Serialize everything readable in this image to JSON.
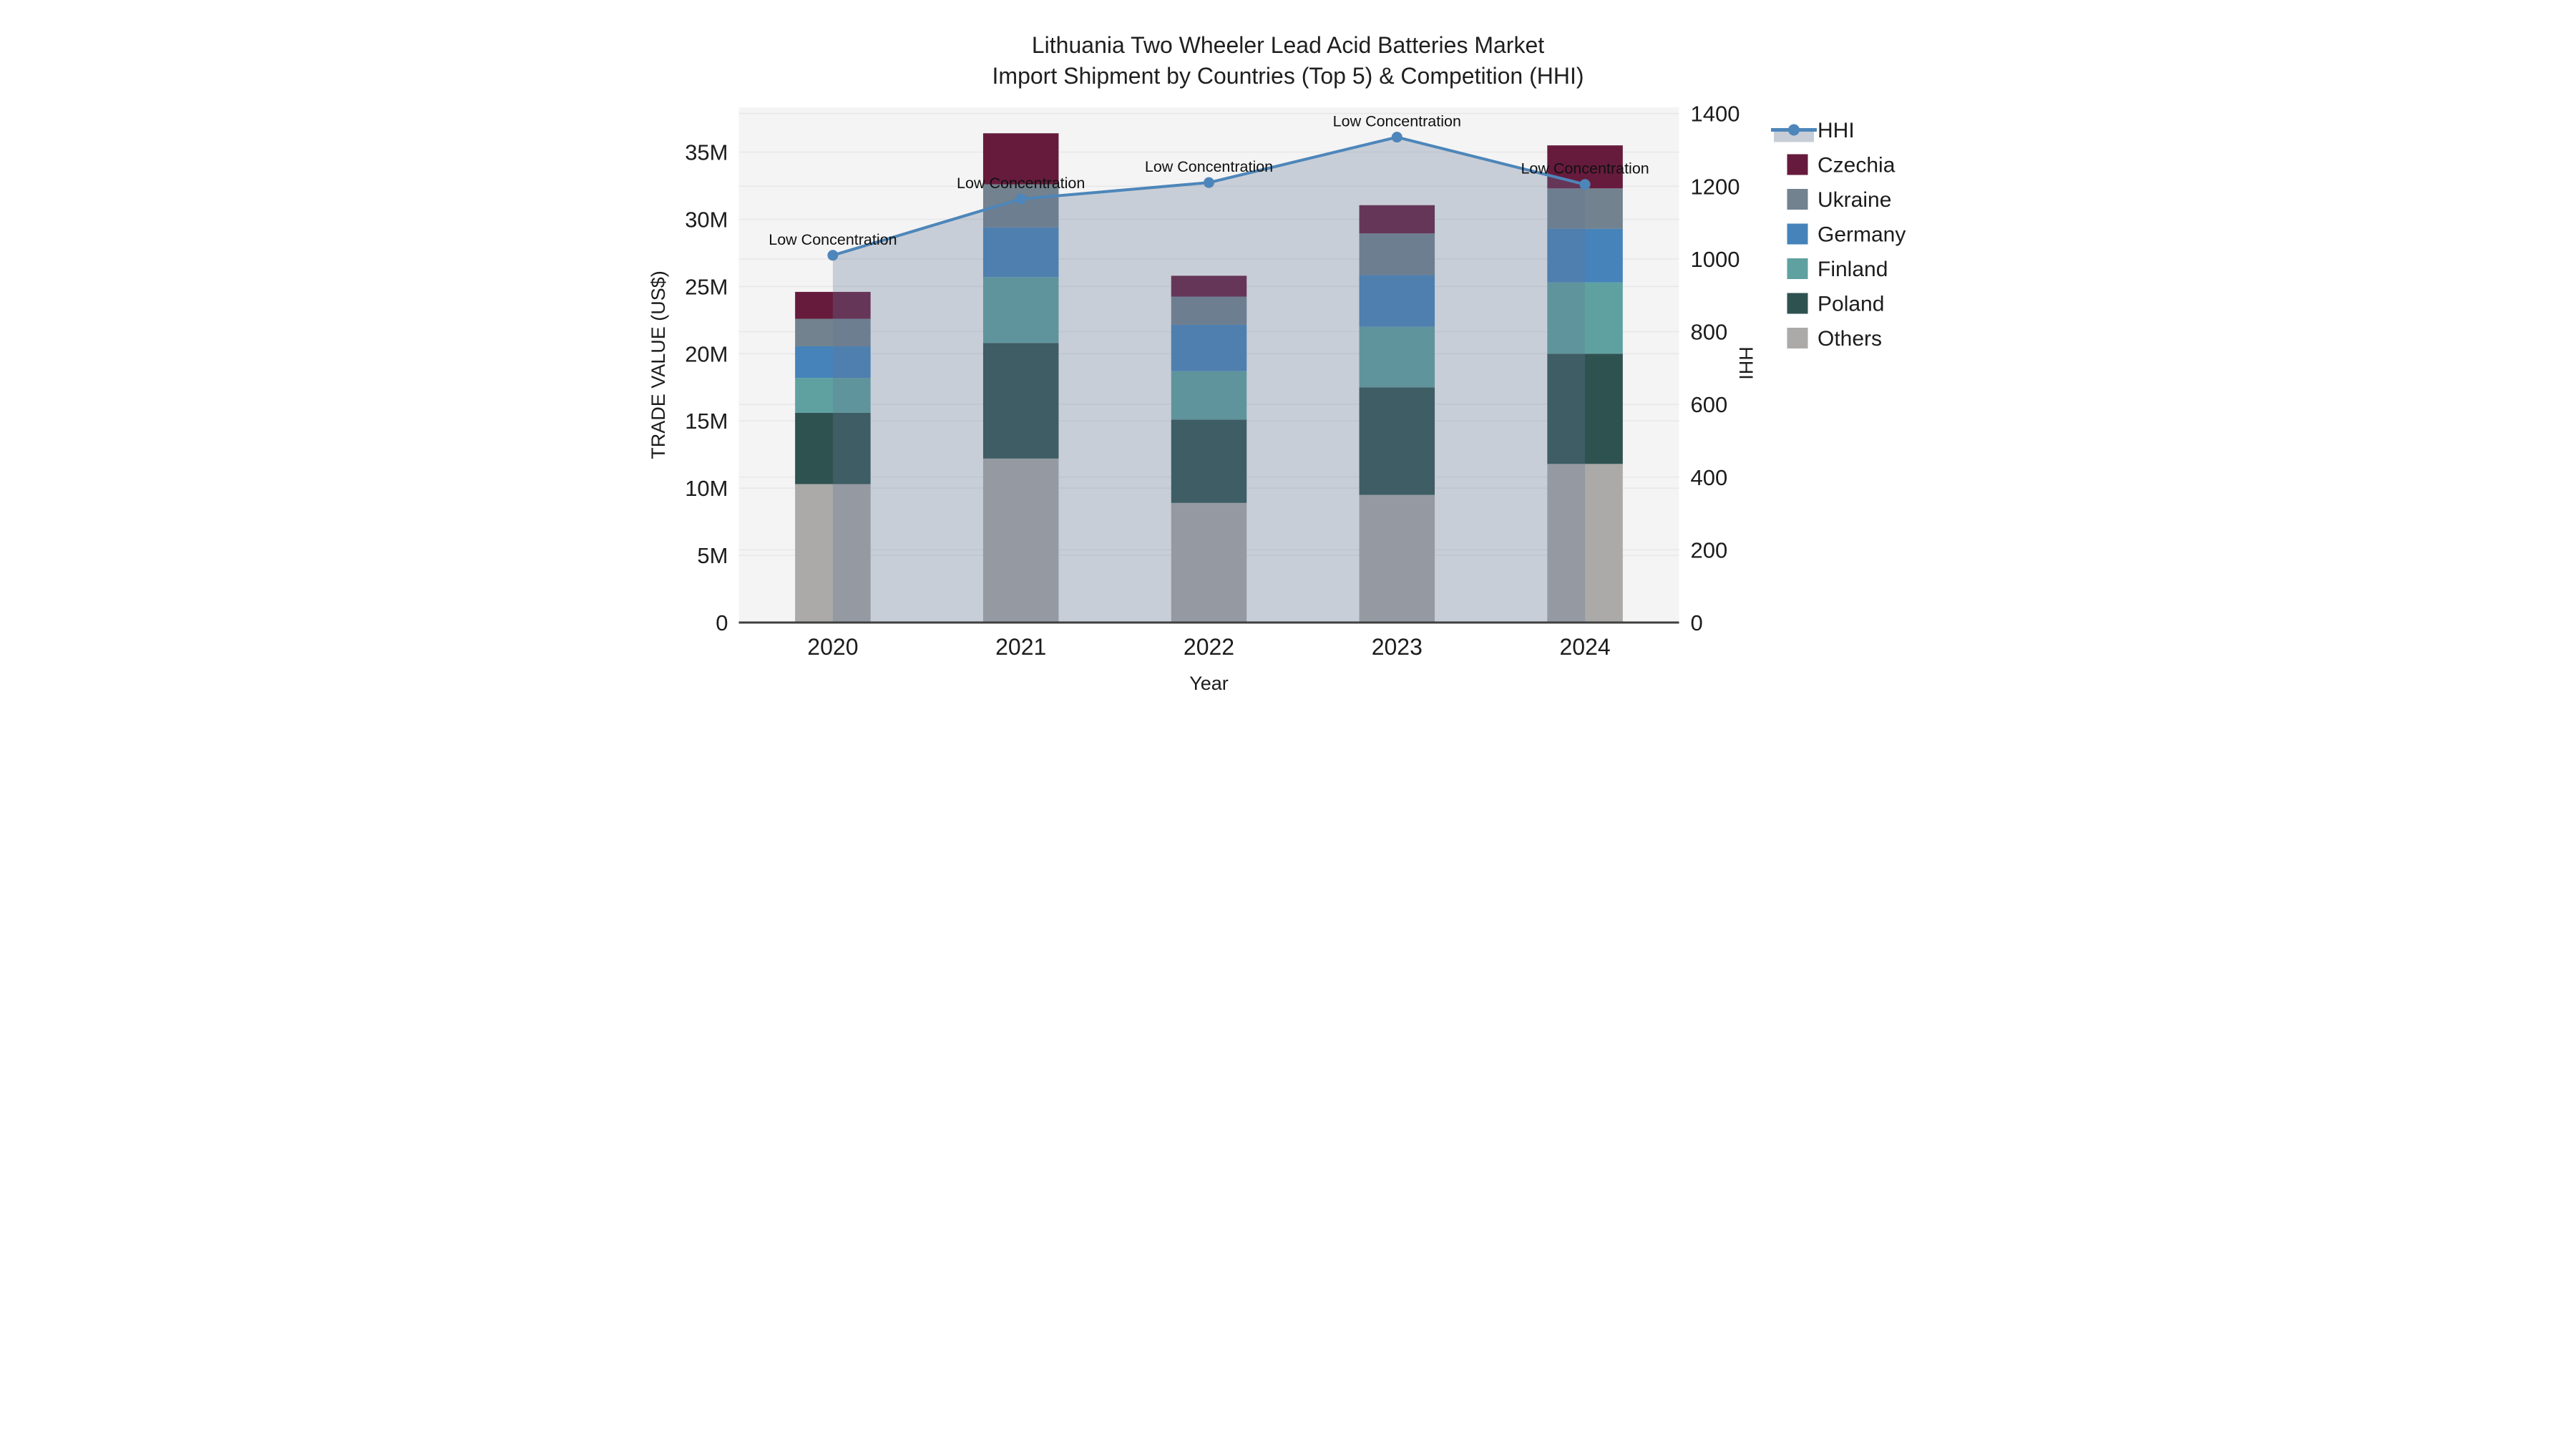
{
  "title": {
    "line1": "Lithuania Two Wheeler Lead Acid Batteries Market",
    "line2": "Import Shipment by Countries (Top 5) & Competition (HHI)"
  },
  "axes": {
    "x_title": "Year",
    "y_left_title": "TRADE VALUE (US$)",
    "y_right_title": "HHI",
    "y_left_tick_labels": [
      "0",
      "5M",
      "10M",
      "15M",
      "20M",
      "25M",
      "30M",
      "35M"
    ],
    "y_left_tick_values": [
      0,
      5,
      10,
      15,
      20,
      25,
      30,
      35
    ],
    "y_right_tick_labels": [
      "0",
      "200",
      "400",
      "600",
      "800",
      "1000",
      "1200",
      "1400"
    ],
    "y_right_tick_values": [
      0,
      200,
      400,
      600,
      800,
      1000,
      1200,
      1400
    ]
  },
  "legend": {
    "items": [
      {
        "label": "HHI",
        "type": "line",
        "color": "#4d86ba",
        "band_color": "#c7cdd6"
      },
      {
        "label": "Czechia",
        "type": "square",
        "color": "#661b3d"
      },
      {
        "label": "Ukraine",
        "type": "square",
        "color": "#72828f"
      },
      {
        "label": "Germany",
        "type": "square",
        "color": "#4583ba"
      },
      {
        "label": "Finland",
        "type": "square",
        "color": "#5fa1a0"
      },
      {
        "label": "Poland",
        "type": "square",
        "color": "#2e5250"
      },
      {
        "label": "Others",
        "type": "square",
        "color": "#abaaa8"
      }
    ]
  },
  "chart_data": {
    "type": "bar",
    "subtype": "stacked-bars-with-line-overlay",
    "title": "Lithuania Two Wheeler Lead Acid Batteries Market Import Shipment by Countries (Top 5) & Competition (HHI)",
    "xlabel": "Year",
    "ylabel_left": "TRADE VALUE (US$)",
    "ylabel_right": "HHI",
    "categories": [
      "2020",
      "2021",
      "2022",
      "2023",
      "2024"
    ],
    "bar_unit": "million US$",
    "stack_order_bottom_to_top": [
      "Others",
      "Poland",
      "Finland",
      "Germany",
      "Ukraine",
      "Czechia"
    ],
    "series": [
      {
        "name": "Others",
        "color": "#abaaa8",
        "values": [
          10.3,
          12.2,
          8.9,
          9.5,
          11.8
        ]
      },
      {
        "name": "Poland",
        "color": "#2e5250",
        "values": [
          5.3,
          8.6,
          6.2,
          8.0,
          8.2
        ]
      },
      {
        "name": "Finland",
        "color": "#5fa1a0",
        "values": [
          2.6,
          4.9,
          3.6,
          4.5,
          5.3
        ]
      },
      {
        "name": "Germany",
        "color": "#4583ba",
        "values": [
          2.35,
          3.7,
          3.45,
          3.85,
          4.0
        ]
      },
      {
        "name": "Ukraine",
        "color": "#72828f",
        "values": [
          2.05,
          3.2,
          2.1,
          3.1,
          3.0
        ]
      },
      {
        "name": "Czechia",
        "color": "#661b3d",
        "values": [
          2.0,
          3.8,
          1.55,
          2.1,
          3.2
        ]
      }
    ],
    "bar_totals": [
      24.6,
      36.4,
      25.8,
      31.05,
      35.5
    ],
    "line_series": {
      "name": "HHI",
      "color": "#4d86ba",
      "fill_color": "rgba(100,120,150,0.30)",
      "values": [
        1010,
        1165,
        1210,
        1335,
        1205
      ]
    },
    "annotations": [
      {
        "category": "2020",
        "text": "Low Concentration"
      },
      {
        "category": "2021",
        "text": "Low Concentration"
      },
      {
        "category": "2022",
        "text": "Low Concentration"
      },
      {
        "category": "2023",
        "text": "Low Concentration"
      },
      {
        "category": "2024",
        "text": "Low Concentration"
      }
    ],
    "ylim_left": [
      0,
      38.33
    ],
    "ylim_right": [
      0,
      1417
    ],
    "grid": true,
    "legend_position": "right",
    "plot_bg_color": "#f4f4f4",
    "grid_color": "#e7e7e7",
    "axis_line_color": "#3f3f3f"
  }
}
